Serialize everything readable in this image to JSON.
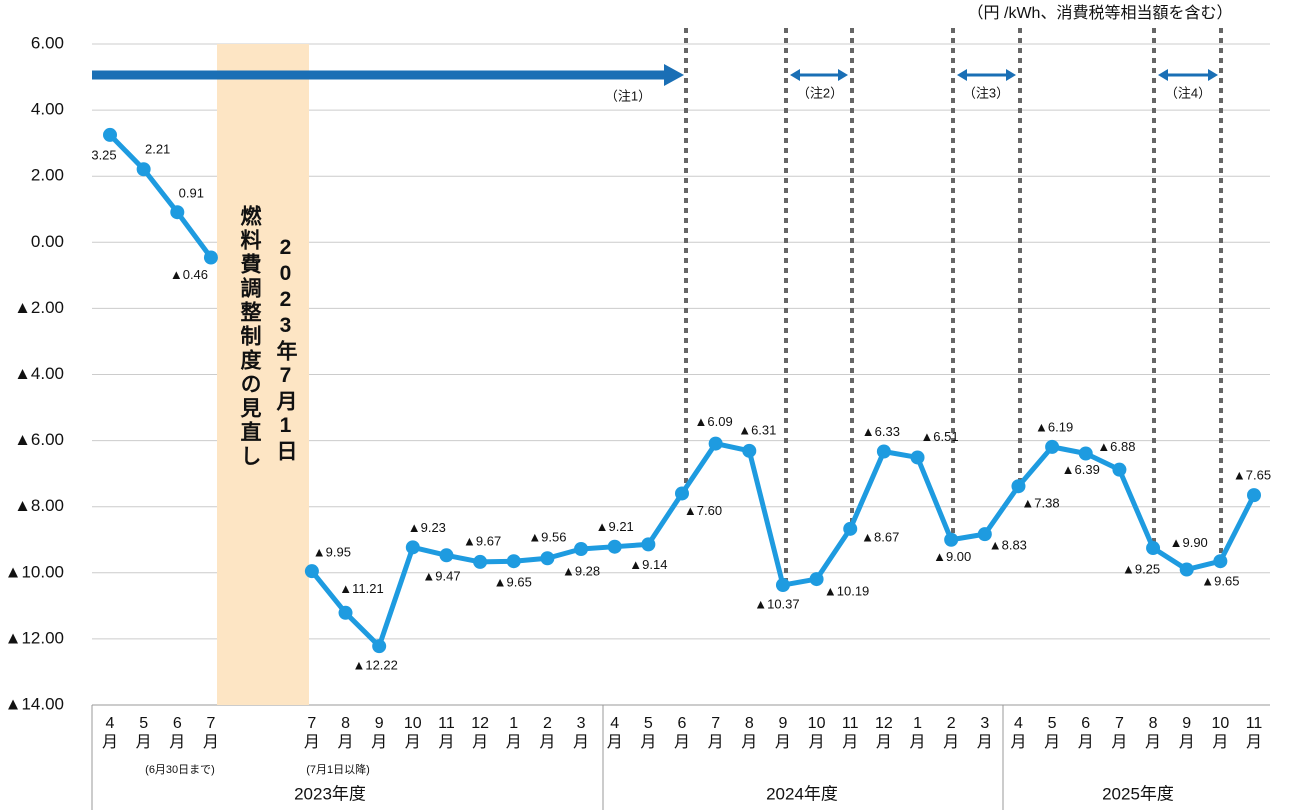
{
  "chart_data": {
    "type": "line",
    "unit_note": "（円 /kWh、消費税等相当額を含む）",
    "categories": [
      "4月",
      "5月",
      "6月",
      "7月",
      null,
      null,
      "7月",
      "8月",
      "9月",
      "10月",
      "11月",
      "12月",
      "1月",
      "2月",
      "3月",
      "4月",
      "5月",
      "6月",
      "7月",
      "8月",
      "9月",
      "10月",
      "11月",
      "12月",
      "1月",
      "2月",
      "3月",
      "4月",
      "5月",
      "6月",
      "7月",
      "8月",
      "9月",
      "10月",
      "11月"
    ],
    "series": [
      {
        "color": "#1e9be0",
        "values": [
          3.25,
          2.21,
          0.91,
          -0.46,
          null,
          null,
          -9.95,
          -11.21,
          -12.22,
          -9.23,
          -9.47,
          -9.67,
          -9.65,
          -9.56,
          -9.28,
          -9.21,
          -9.14,
          -7.6,
          -6.09,
          -6.31,
          -10.37,
          -10.19,
          -8.67,
          -6.33,
          -6.51,
          -9.0,
          -8.83,
          -7.38,
          -6.19,
          -6.39,
          -6.88,
          -9.25,
          -9.9,
          -9.65,
          -7.65
        ],
        "value_labels": [
          "3.25",
          "2.21",
          "0.91",
          "▲0.46",
          null,
          null,
          "▲9.95",
          "▲11.21",
          "▲12.22",
          "▲9.23",
          "▲9.47",
          "▲9.67",
          "▲9.65",
          "▲9.56",
          "▲9.28",
          "▲9.21",
          "▲9.14",
          "▲7.60",
          "▲6.09",
          "▲6.31",
          "▲10.37",
          "▲10.19",
          "▲8.67",
          "▲6.33",
          "▲6.51",
          "▲9.00",
          "▲8.83",
          "▲7.38",
          "▲6.19",
          "▲6.39",
          "▲6.88",
          "▲9.25",
          "▲9.90",
          "▲9.65",
          "▲7.65"
        ]
      }
    ],
    "ylim": [
      -14,
      6
    ],
    "yticks": [
      {
        "value": 6,
        "label": "6.00"
      },
      {
        "value": 4,
        "label": "4.00"
      },
      {
        "value": 2,
        "label": "2.00"
      },
      {
        "value": 0,
        "label": "0.00"
      },
      {
        "value": -2,
        "label": "▲2.00"
      },
      {
        "value": -4,
        "label": "▲4.00"
      },
      {
        "value": -6,
        "label": "▲6.00"
      },
      {
        "value": -8,
        "label": "▲8.00"
      },
      {
        "value": -10,
        "label": "▲10.00"
      },
      {
        "value": -12,
        "label": "▲12.00"
      },
      {
        "value": -14,
        "label": "▲14.00"
      }
    ],
    "grid": true,
    "revision_band": {
      "date": "2023年7月1日",
      "text": "燃料費調整制度の見直し"
    },
    "month_notes": {
      "before": "(6月30日まで)",
      "after": "(7月1日以降)"
    },
    "fiscal_years": [
      "2023年度",
      "2024年度",
      "2025年度"
    ],
    "arrow_notes": [
      "（注1）",
      "（注2）",
      "（注3）",
      "（注4）"
    ]
  }
}
